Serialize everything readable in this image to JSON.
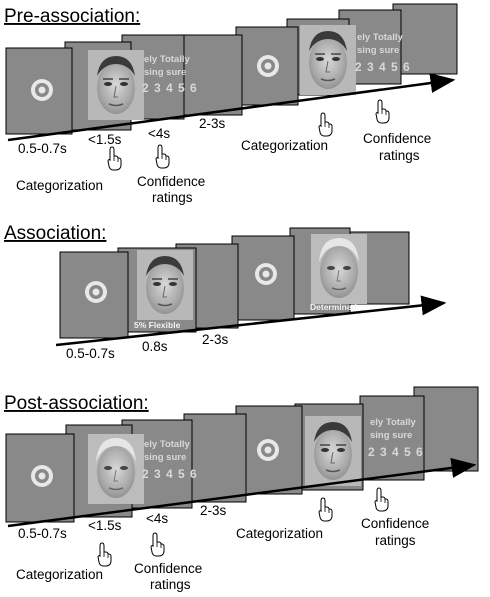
{
  "phases": {
    "pre": {
      "title": "Pre-association:",
      "durations": [
        "0.5-0.7s",
        "<1.5s",
        "<4s",
        "2-3s"
      ],
      "actions": [
        "Categorization",
        "Confidence",
        "ratings",
        "Categorization",
        "Confidence",
        "ratings"
      ],
      "rating_lines": [
        "ely  Totally",
        "sing  sure",
        "2 3 4 5 6",
        "ely  Totally",
        "sing  sure",
        "2 3 4 5 6"
      ]
    },
    "assoc": {
      "title": "Association:",
      "durations": [
        "0.5-0.7s",
        "0.8s",
        "2-3s"
      ],
      "captions": [
        "5% Flexible",
        "Determined"
      ]
    },
    "post": {
      "title": "Post-association:",
      "durations": [
        "0.5-0.7s",
        "<1.5s",
        "<4s",
        "2-3s"
      ],
      "actions": [
        "Categorization",
        "Confidence",
        "ratings",
        "Categorization",
        "Confidence",
        "ratings"
      ],
      "rating_lines": [
        "ely  Totally",
        "sing  sure",
        "2 3 4 5 6",
        "ely  Totally",
        "sing  sure",
        "2 3 4 5 6"
      ]
    }
  },
  "icons": [
    "hand-pointer-icon",
    "target-circle-icon",
    "face-photo"
  ],
  "colors": {
    "frame": "#898989",
    "text": "#000000"
  }
}
